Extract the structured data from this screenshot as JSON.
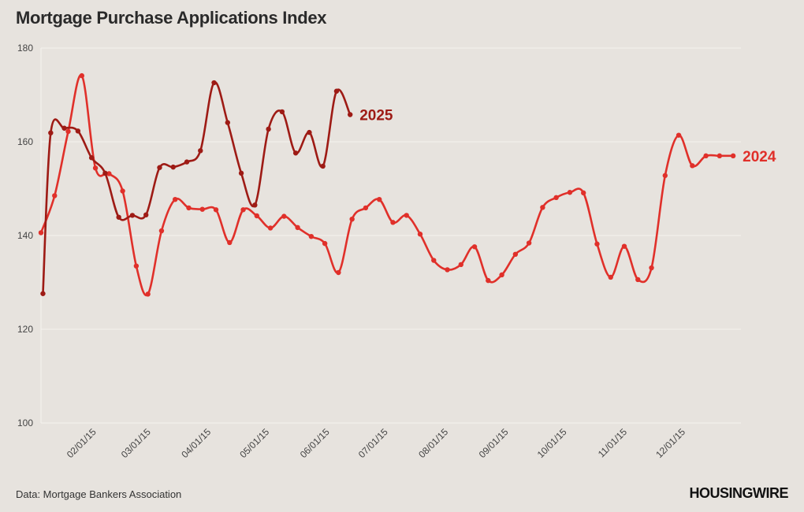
{
  "header": {
    "title": "Mortgage Purchase Applications Index"
  },
  "footer": {
    "source": "Data: Mortgage Bankers Association",
    "logo": "HOUSINGWIRE"
  },
  "colors": {
    "s2025": "#9e1b15",
    "s2024": "#e0302a",
    "grid": "#f6f3ef",
    "background": "#e7e3de"
  },
  "chart_data": {
    "type": "line",
    "title": "Mortgage Purchase Applications Index",
    "xlabel": "",
    "ylabel": "",
    "ylim": [
      100,
      180
    ],
    "yticks": [
      100,
      120,
      140,
      160,
      180
    ],
    "xlim": [
      "01/05/15",
      "12/31/15"
    ],
    "xticks": [
      "02/01/15",
      "03/01/15",
      "04/01/15",
      "05/01/15",
      "06/01/15",
      "07/01/15",
      "08/01/15",
      "09/01/15",
      "10/01/15",
      "11/01/15",
      "12/01/15"
    ],
    "grid": true,
    "series": [
      {
        "name": "2025",
        "x": [
          "01/06/15",
          "01/10/15",
          "01/17/15",
          "01/24/15",
          "01/31/15",
          "02/07/15",
          "02/14/15",
          "02/21/15",
          "02/28/15",
          "03/07/15",
          "03/14/15",
          "03/21/15",
          "03/28/15",
          "04/04/15",
          "04/11/15",
          "04/18/15",
          "04/25/15",
          "05/02/15",
          "05/09/15",
          "05/16/15",
          "05/23/15",
          "05/30/15",
          "06/06/15",
          "06/13/15",
          "06/20/15"
        ],
        "y": [
          127.6,
          161.9,
          162.9,
          162.3,
          156.6,
          153.3,
          143.9,
          144.3,
          144.4,
          154.5,
          154.6,
          155.7,
          158.1,
          172.6,
          164.1,
          153.3,
          146.5,
          162.7,
          166.4,
          157.6,
          162.0,
          154.8,
          170.8,
          165.8,
          null
        ]
      },
      {
        "name": "2024",
        "x": [
          "01/05/15",
          "01/12/15",
          "01/19/15",
          "01/26/15",
          "02/02/15",
          "02/09/15",
          "02/16/15",
          "02/23/15",
          "03/01/15",
          "03/08/15",
          "03/15/15",
          "03/22/15",
          "03/29/15",
          "04/05/15",
          "04/12/15",
          "04/19/15",
          "04/26/15",
          "05/03/15",
          "05/10/15",
          "05/17/15",
          "05/24/15",
          "05/31/15",
          "06/07/15",
          "06/14/15",
          "06/21/15",
          "06/28/15",
          "07/05/15",
          "07/12/15",
          "07/19/15",
          "07/26/15",
          "08/02/15",
          "08/09/15",
          "08/16/15",
          "08/23/15",
          "08/30/15",
          "09/06/15",
          "09/13/15",
          "09/20/15",
          "09/27/15",
          "10/04/15",
          "10/11/15",
          "10/18/15",
          "10/25/15",
          "11/01/15",
          "11/08/15",
          "11/15/15",
          "11/22/15",
          "11/29/15",
          "12/06/15",
          "12/13/15",
          "12/20/15",
          "12/27/15"
        ],
        "y": [
          140.6,
          148.5,
          162.2,
          174.1,
          154.4,
          153.2,
          149.5,
          133.5,
          127.5,
          141.0,
          147.7,
          145.9,
          145.6,
          145.5,
          138.5,
          145.5,
          144.2,
          141.6,
          144.1,
          141.7,
          139.8,
          138.3,
          132.1,
          143.5,
          145.9,
          147.7,
          142.8,
          144.3,
          140.3,
          134.7,
          132.7,
          133.8,
          137.6,
          130.4,
          131.6,
          136.0,
          138.4,
          146.0,
          148.1,
          149.2,
          149.1,
          138.2,
          131.1,
          137.7,
          130.6,
          133.1,
          152.8,
          161.4,
          154.9,
          157.0,
          157.0,
          157.0
        ]
      }
    ],
    "annotations": [
      {
        "text": "2025",
        "series": "2025"
      },
      {
        "text": "2024",
        "series": "2024"
      }
    ]
  }
}
